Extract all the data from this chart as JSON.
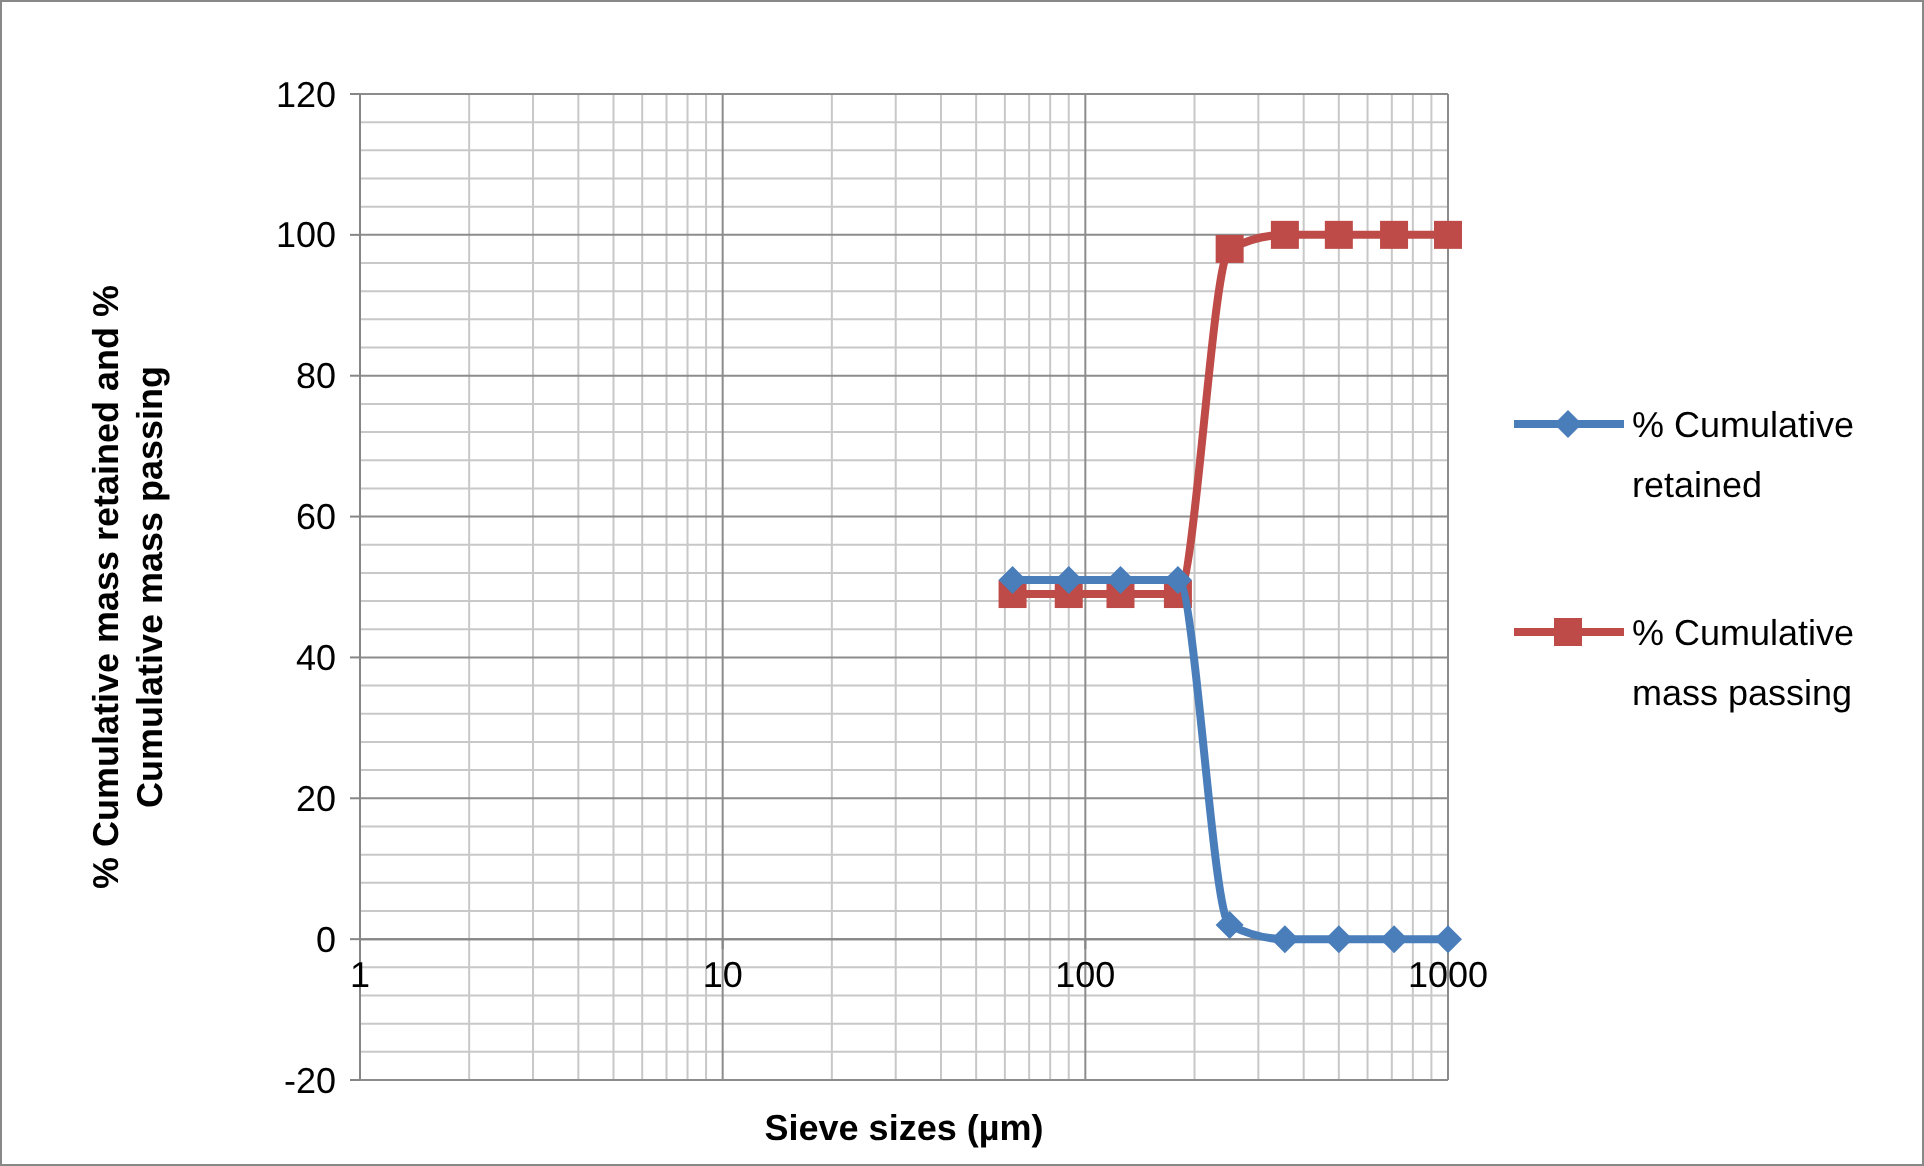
{
  "chart_data": {
    "type": "line",
    "xlabel": "Sieve sizes (µm)",
    "ylabel": "% Cumulative mass retained and % Cumulative mass passing",
    "x": [
      63,
      90,
      125,
      180,
      250,
      355,
      500,
      710,
      1000
    ],
    "log": "x",
    "xlim": [
      1,
      1000
    ],
    "xticks": [
      1,
      10,
      100,
      1000
    ],
    "ylim": [
      -20,
      120
    ],
    "yticks": [
      -20,
      0,
      20,
      40,
      60,
      80,
      100,
      120
    ],
    "grid": true,
    "legend": "right",
    "series": [
      {
        "name": "% Cumulative retained",
        "color": "#4a7ebb",
        "marker": "diamond",
        "values": [
          51,
          51,
          51,
          51,
          2,
          0,
          0,
          0,
          0
        ]
      },
      {
        "name": "% Cumulative mass passing",
        "color": "#be4b48",
        "marker": "square",
        "values": [
          49,
          49,
          49,
          49,
          98,
          100,
          100,
          100,
          100
        ]
      }
    ]
  }
}
